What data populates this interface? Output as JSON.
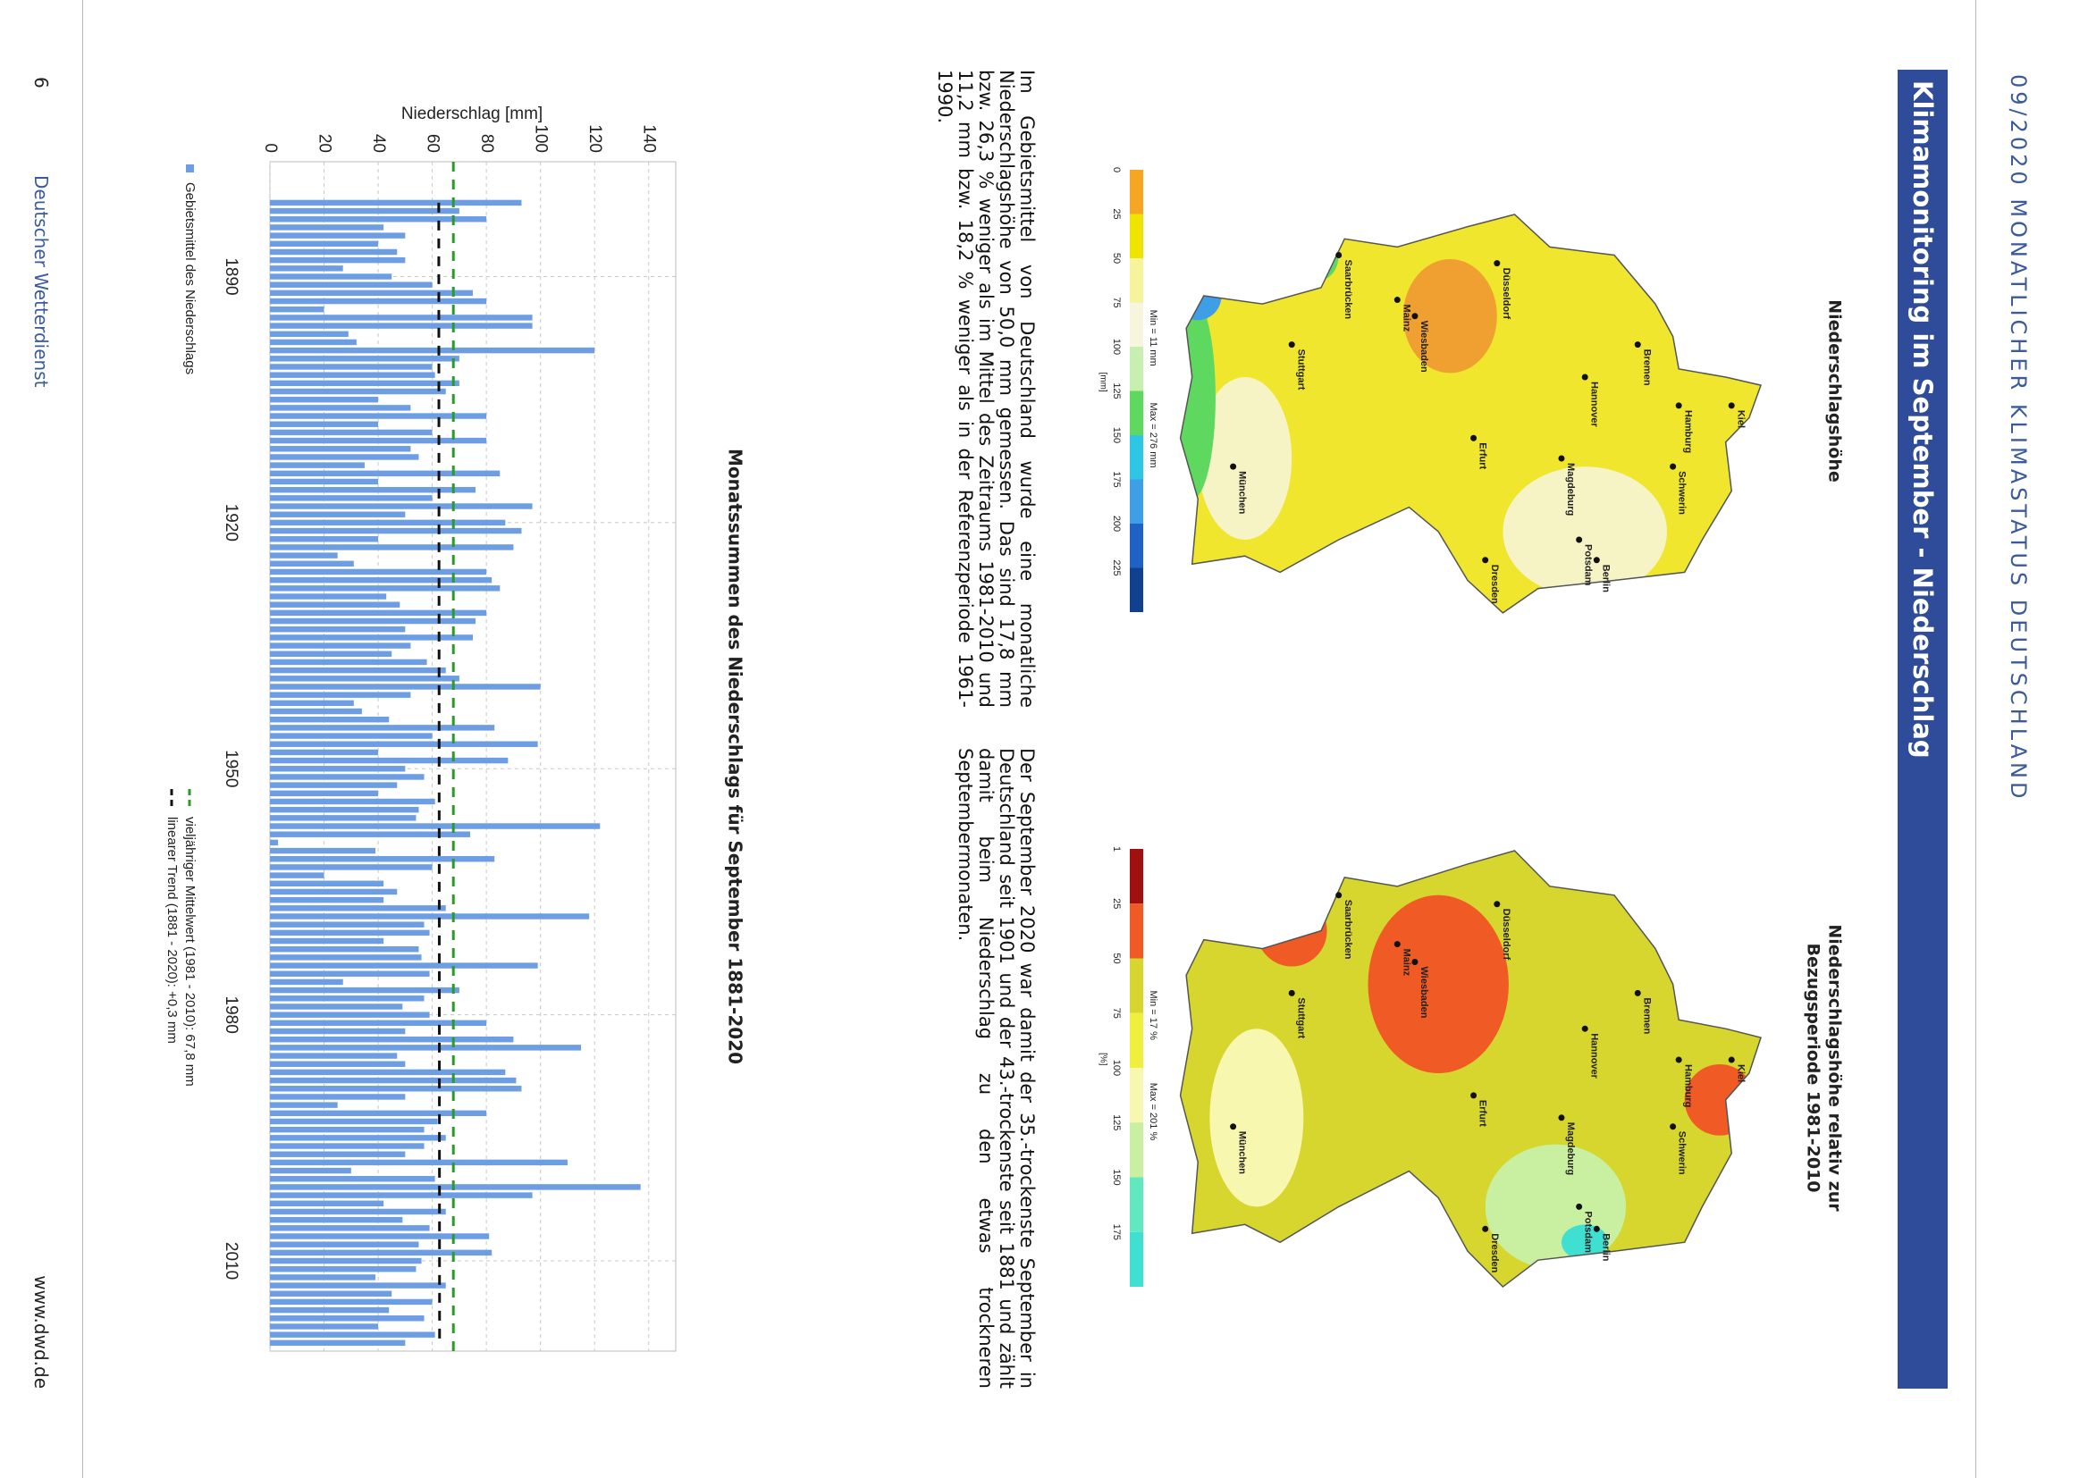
{
  "header": "09/2020 MONATLICHER KLIMASTATUS DEUTSCHLAND",
  "title": "Klimamonitoring im September - Niederschlag",
  "maps": [
    {
      "title_lines": [
        "Niederschlagshöhe"
      ],
      "legend_ticks": [
        0,
        25,
        50,
        75,
        100,
        125,
        150,
        175,
        200,
        225
      ],
      "unit": "[mm]",
      "min": "Min = 11 mm",
      "max": "Max = 276 mm",
      "colors": [
        "#f5a623",
        "#efe400",
        "#f6f39a",
        "#f7f6dc",
        "#c6efb0",
        "#5fd860",
        "#2fc6e6",
        "#3f9fe6",
        "#2061c6",
        "#10418f"
      ]
    },
    {
      "title_lines": [
        "Niederschlagshöhe relativ zur",
        "Bezugsperiode 1981-2010"
      ],
      "legend_ticks": [
        1,
        25,
        50,
        75,
        100,
        125,
        150,
        175
      ],
      "unit": "[%]",
      "min": "Min = 17 %",
      "max": "Max = 201 %",
      "colors": [
        "#a01010",
        "#f05a24",
        "#d6d62e",
        "#f0ef3e",
        "#f8f7b0",
        "#c8f0a0",
        "#62e8c0",
        "#3fe0d2"
      ]
    }
  ],
  "cities": [
    "Kiel",
    "Hamburg",
    "Schwerin",
    "Bremen",
    "Berlin",
    "Hannover",
    "Potsdam",
    "Magdeburg",
    "Düsseldorf",
    "Erfurt",
    "Dresden",
    "Wiesbaden",
    "Mainz",
    "Saarbrücken",
    "Stuttgart",
    "München"
  ],
  "paragraphs": [
    "Im Gebietsmittel von Deutschland wurde eine monatliche Niederschlagshöhe von 50,0 mm gemessen. Das sind 17,8 mm bzw. 26,3 % weniger als im Mittel des Zeitraums 1981-2010 und 11,2 mm bzw. 18,2 % weniger als in der Referenzperiode 1961-1990.",
    "Der September 2020 war damit der 35.-trockenste September in Deutschland seit 1901 und der 43.-trockenste seit 1881 und zählt damit beim Niederschlag zu den etwas trockneren Septembermonaten."
  ],
  "chart_data": {
    "type": "bar",
    "title": "Monatssummen des Niederschlags für September 1881-2020",
    "ylabel": "Niederschlag [mm]",
    "x": [
      1881,
      1882,
      1883,
      1884,
      1885,
      1886,
      1887,
      1888,
      1889,
      1890,
      1891,
      1892,
      1893,
      1894,
      1895,
      1896,
      1897,
      1898,
      1899,
      1900,
      1901,
      1902,
      1903,
      1904,
      1905,
      1906,
      1907,
      1908,
      1909,
      1910,
      1911,
      1912,
      1913,
      1914,
      1915,
      1916,
      1917,
      1918,
      1919,
      1920,
      1921,
      1922,
      1923,
      1924,
      1925,
      1926,
      1927,
      1928,
      1929,
      1930,
      1931,
      1932,
      1933,
      1934,
      1935,
      1936,
      1937,
      1938,
      1939,
      1940,
      1941,
      1942,
      1943,
      1944,
      1945,
      1946,
      1947,
      1948,
      1949,
      1950,
      1951,
      1952,
      1953,
      1954,
      1955,
      1956,
      1957,
      1958,
      1959,
      1960,
      1961,
      1962,
      1963,
      1964,
      1965,
      1966,
      1967,
      1968,
      1969,
      1970,
      1971,
      1972,
      1973,
      1974,
      1975,
      1976,
      1977,
      1978,
      1979,
      1980,
      1981,
      1982,
      1983,
      1984,
      1985,
      1986,
      1987,
      1988,
      1989,
      1990,
      1991,
      1992,
      1993,
      1994,
      1995,
      1996,
      1997,
      1998,
      1999,
      2000,
      2001,
      2002,
      2003,
      2004,
      2005,
      2006,
      2007,
      2008,
      2009,
      2010,
      2011,
      2012,
      2013,
      2014,
      2015,
      2016,
      2017,
      2018,
      2019,
      2020
    ],
    "series": [
      {
        "name": "Gebietsmittel des Niederschlags",
        "color": "#6d9de2",
        "values": [
          93,
          70,
          80,
          42,
          50,
          40,
          47,
          50,
          27,
          45,
          60,
          75,
          80,
          20,
          97,
          97,
          29,
          32,
          120,
          70,
          60,
          61,
          70,
          65,
          40,
          52,
          80,
          40,
          60,
          80,
          52,
          55,
          35,
          85,
          40,
          76,
          60,
          97,
          50,
          87,
          93,
          40,
          90,
          25,
          31,
          80,
          82,
          85,
          43,
          48,
          80,
          76,
          50,
          75,
          52,
          45,
          58,
          65,
          70,
          100,
          52,
          31,
          34,
          44,
          83,
          60,
          99,
          40,
          88,
          50,
          57,
          47,
          40,
          61,
          55,
          54,
          122,
          74,
          3,
          39,
          83,
          60,
          20,
          42,
          47,
          42,
          65,
          118,
          57,
          59,
          42,
          55,
          56,
          99,
          59,
          27,
          70,
          57,
          49,
          59,
          80,
          50,
          90,
          115,
          47,
          50,
          87,
          91,
          93,
          50,
          25,
          80,
          62,
          57,
          65,
          57,
          50,
          110,
          30,
          61,
          137,
          97,
          42,
          65,
          49,
          59,
          81,
          55,
          82,
          56,
          54,
          39,
          65,
          45,
          60,
          44,
          57,
          40,
          61,
          50
        ]
      }
    ],
    "mean_line": {
      "name": "vieljähriger Mittelwert (1981 - 2010): 67,8 mm",
      "value": 67.8,
      "color": "#2a9a2a"
    },
    "trend_line": {
      "name": "linearer Trend (1881 - 2020): +0,3 mm",
      "x": [
        1881,
        2020
      ],
      "values": [
        62.4,
        62.7
      ],
      "color": "#111111"
    },
    "xlim": [
      1876,
      2021
    ],
    "xticks": [
      1890,
      1920,
      1950,
      1980,
      2010
    ],
    "ylim": [
      0,
      150
    ],
    "yticks": [
      0,
      20,
      40,
      60,
      80,
      100,
      120,
      140
    ],
    "grid": true
  },
  "footer": {
    "page": "6",
    "publisher": "Deutscher Wetterdienst",
    "url": "www.dwd.de"
  }
}
